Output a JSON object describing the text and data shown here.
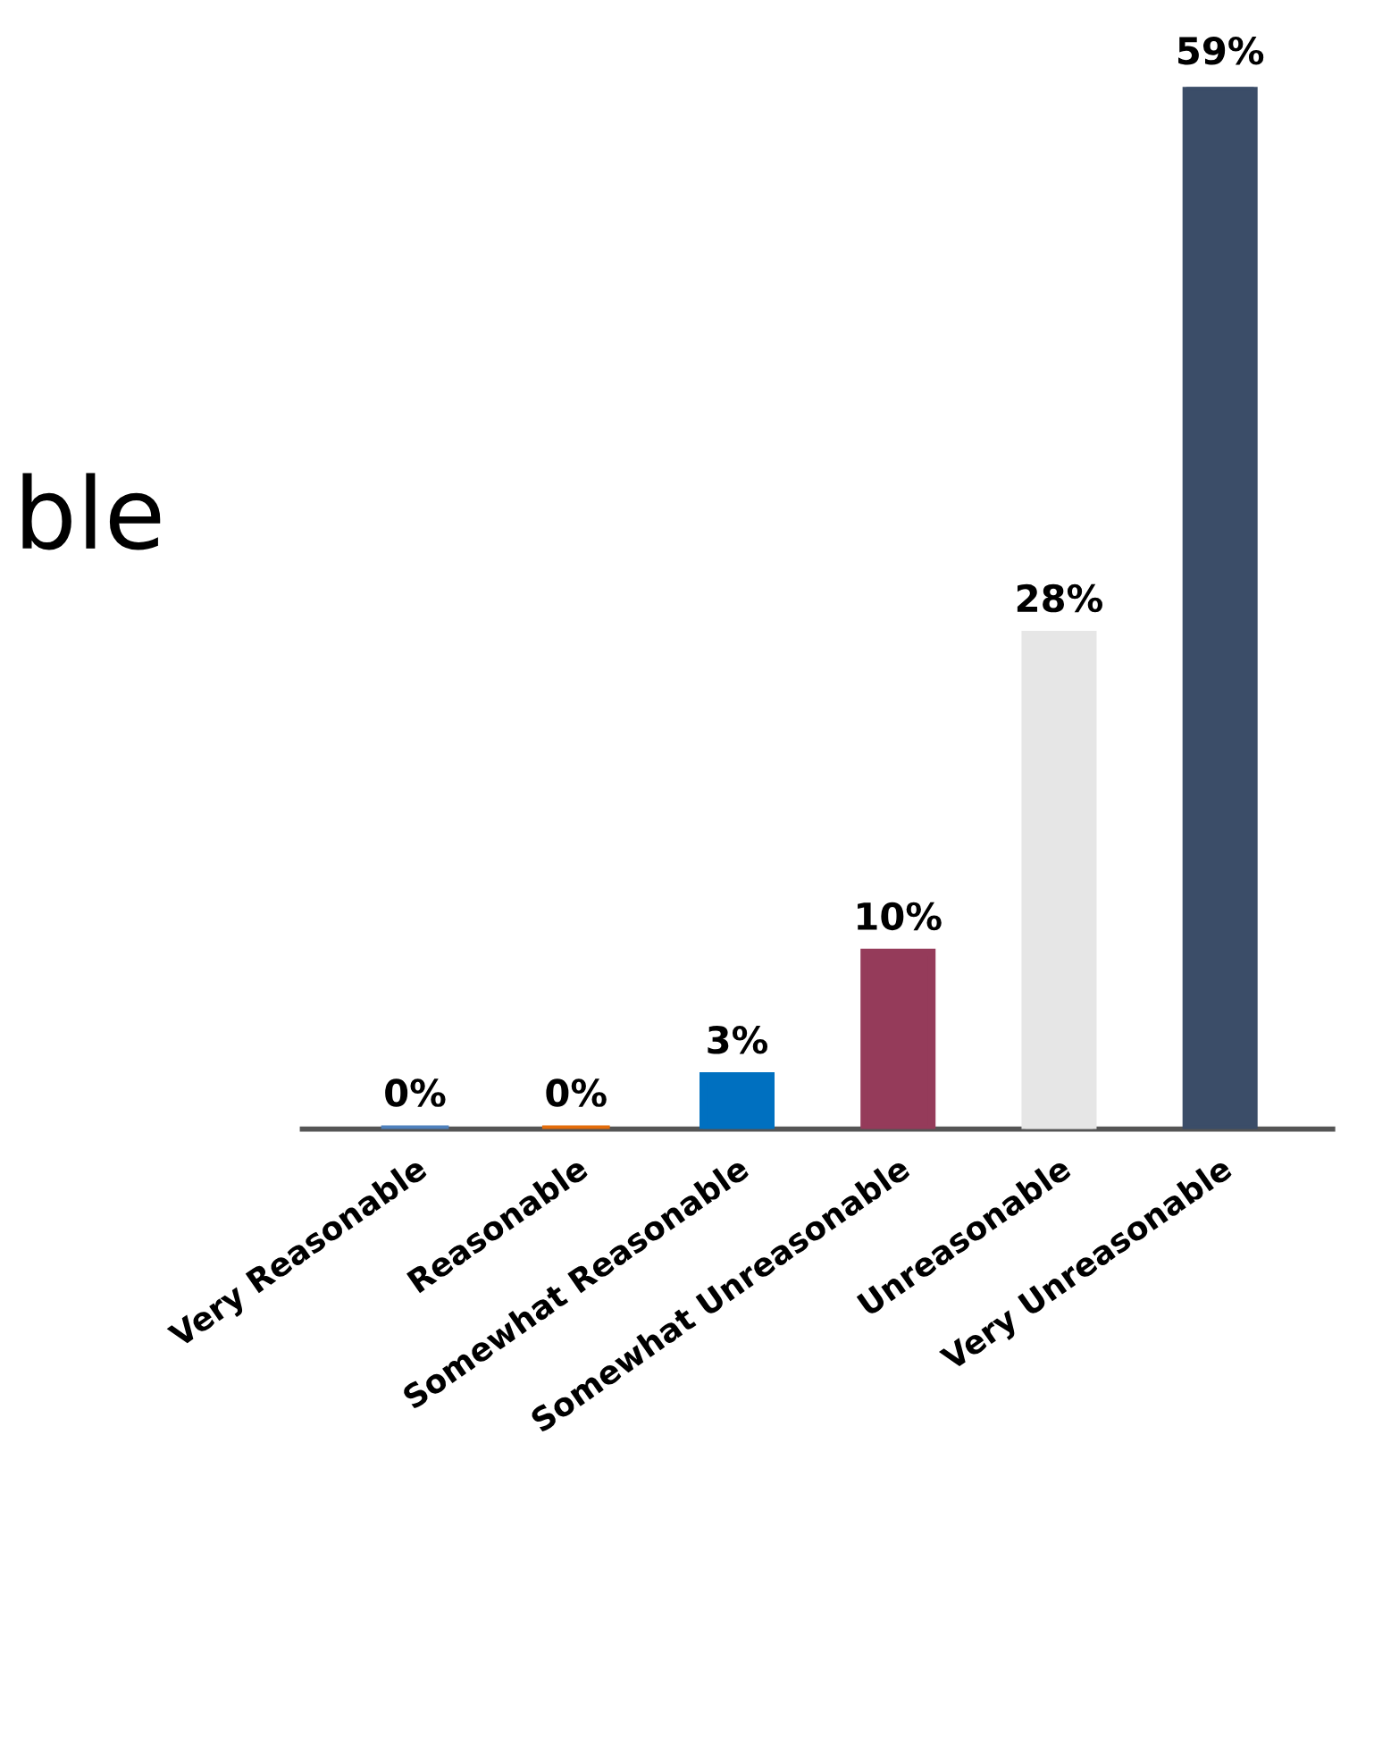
{
  "chart_data": {
    "type": "bar",
    "title": "ble",
    "categories": [
      "Very Reasonable",
      "Reasonable",
      "Somewhat Reasonable",
      "Somewhat Unreasonable",
      "Unreasonable",
      "Very Unreasonable"
    ],
    "values": [
      0,
      0,
      3,
      10,
      28,
      59
    ],
    "colors": [
      "#4f81bd",
      "#e46c0a",
      "#0070c0",
      "#953b5a",
      "#e6e6e6",
      "#3b4d68"
    ],
    "value_labels": [
      "0%",
      "0%",
      "3%",
      "10%",
      "28%",
      "59%"
    ]
  }
}
